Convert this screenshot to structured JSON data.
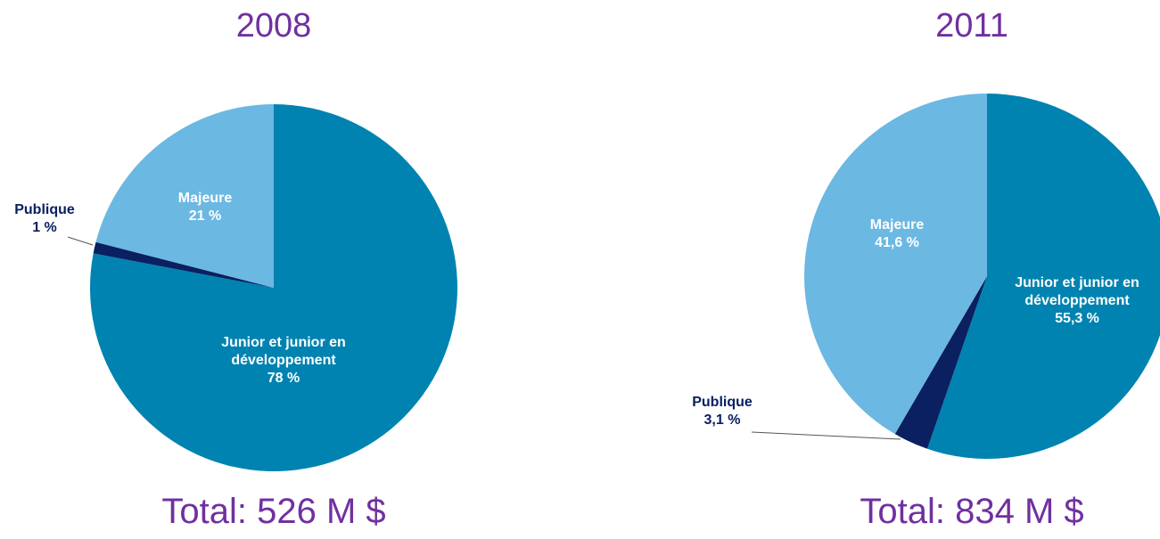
{
  "chart_data": [
    {
      "type": "pie",
      "title": "2008",
      "total": "Total: 526 M $",
      "categories": [
        "Junior et junior en développement",
        "Publique",
        "Majeure"
      ],
      "values": [
        78,
        1,
        21
      ],
      "value_labels": [
        "78 %",
        "1 %",
        "21 %"
      ],
      "colors": [
        "#0083b0",
        "#0a2060",
        "#6bb8e2"
      ]
    },
    {
      "type": "pie",
      "title": "2011",
      "total": "Total: 834 M $",
      "categories": [
        "Junior et junior en développement",
        "Publique",
        "Majeure"
      ],
      "values": [
        55.3,
        3.1,
        41.6
      ],
      "value_labels": [
        "55,3 %",
        "3,1 %",
        "41,6 %"
      ],
      "colors": [
        "#0083b0",
        "#0a2060",
        "#6bb8e2"
      ]
    }
  ]
}
